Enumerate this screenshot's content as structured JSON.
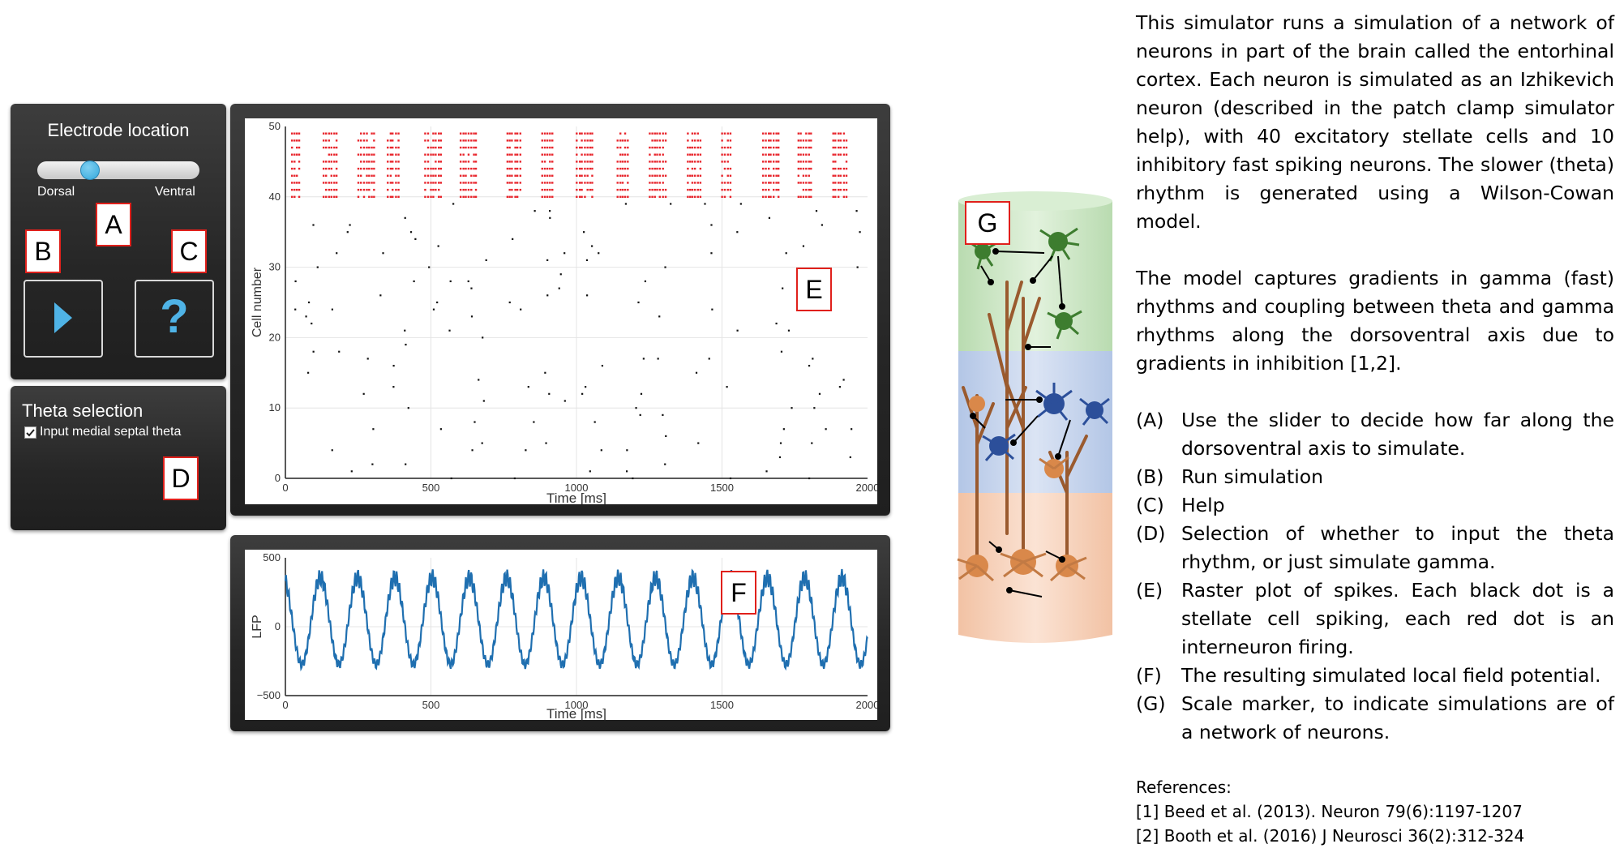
{
  "electrode": {
    "title": "Electrode location",
    "left_label": "Dorsal",
    "right_label": "Ventral",
    "slider_value": 0.3
  },
  "buttons": {
    "play_icon": "play-icon",
    "help_label": "?"
  },
  "theta": {
    "title": "Theta selection",
    "checkbox_label": "Input medial septal theta",
    "checked": true
  },
  "markers": {
    "a": "A",
    "b": "B",
    "c": "C",
    "d": "D",
    "e": "E",
    "f": "F",
    "g": "G"
  },
  "raster": {
    "ylabel": "Cell number",
    "xlabel": "Time [ms]",
    "xticks": [
      "0",
      "500",
      "1000",
      "1500",
      "2000"
    ],
    "yticks": [
      "0",
      "10",
      "20",
      "30",
      "40",
      "50"
    ]
  },
  "lfp": {
    "ylabel": "LFP",
    "xlabel": "Time [ms]",
    "xticks": [
      "0",
      "500",
      "1000",
      "1500",
      "2000"
    ],
    "yticks": [
      "500",
      "0",
      "−500"
    ]
  },
  "chart_data": [
    {
      "type": "scatter",
      "xlabel": "Time [ms]",
      "ylabel": "Cell number",
      "xlim": [
        0,
        2000
      ],
      "ylim": [
        0,
        50
      ],
      "series": [
        {
          "color": "#e8242b",
          "cells": [
            40,
            49
          ],
          "burst_times": [
            20,
            130,
            250,
            350,
            480,
            600,
            760,
            880,
            1000,
            1140,
            1250,
            1380,
            1500,
            1640,
            1760,
            1880
          ]
        },
        {
          "color": "#111111",
          "cells": [
            0,
            39
          ]
        }
      ]
    },
    {
      "type": "line",
      "xlabel": "Time [ms]",
      "ylabel": "LFP",
      "xlim": [
        0,
        2000
      ],
      "ylim": [
        -500,
        500
      ],
      "theta_peaks_ms": [
        0,
        150,
        270,
        390,
        510,
        640,
        770,
        900,
        1030,
        1160,
        1280,
        1410,
        1540,
        1660,
        1790,
        1920
      ],
      "amplitude": 420,
      "color": "#1f6fb0"
    }
  ],
  "description": {
    "para1": "This simulator runs a simulation of a network of neurons in part of the brain called the entorhinal cortex. Each neuron is simulated as an Izhikevich neuron (described in the patch clamp simulator help), with 40 excitatory stellate cells and 10 inhibitory fast spiking neurons. The slower (theta) rhythm is generated using a Wilson-Cowan model.",
    "para2": "The model captures gradients in gamma (fast) rhythms and coupling between theta and gamma rhythms along the dorsoventral axis due to gradients in inhibition [1,2].",
    "legend": [
      {
        "key": "(A)",
        "text": "Use the slider to decide how far along the dorsoventral axis to simulate."
      },
      {
        "key": "(B)",
        "text": "Run simulation"
      },
      {
        "key": "(C)",
        "text": "Help"
      },
      {
        "key": "(D)",
        "text": "Selection of whether to input the theta rhythm, or just simulate gamma."
      },
      {
        "key": "(E)",
        "text": "Raster plot of spikes. Each black dot is a stellate cell spiking, each red dot is an interneuron firing."
      },
      {
        "key": "(F)",
        "text": "The resulting simulated local field potential."
      },
      {
        "key": "(G)",
        "text": "Scale marker, to indicate simulations are of a network of neurons."
      }
    ]
  },
  "references": {
    "title": "References:",
    "items": [
      "[1] Beed et al. (2013). Neuron 79(6):1197-1207",
      "[2] Booth et al. (2016) J Neurosci 36(2):312-324"
    ]
  },
  "colors": {
    "panel": "#2b2b2b",
    "accent": "#35a8dc",
    "marker_border": "#e0201b",
    "green": "#cfe8c8",
    "blue": "#c9d6ee",
    "orange": "#f6d2bd"
  }
}
